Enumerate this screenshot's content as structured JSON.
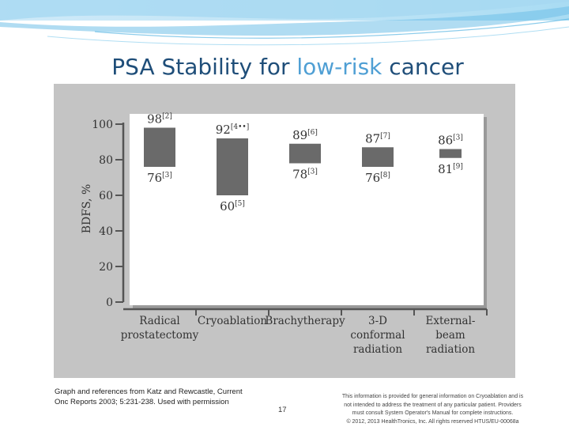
{
  "slide": {
    "title_part1": "PSA Stability for ",
    "title_highlight": "low-risk",
    "title_part2": " cancer",
    "page_number": "17",
    "caption_line1": "Graph and references from Katz and Rewcastle, Current",
    "caption_line2": "Onc Reports 2003; 5:231-238. Used with permission",
    "disclaimer_line1": "This information is provided for general information on Cryoablation and is",
    "disclaimer_line2": "not intended to address the treatment of any particular patient. Providers",
    "disclaimer_line3": "must consult System Operator's Manual for complete instructions.",
    "disclaimer_line4": "© 2012, 2013 HealthTronics, Inc. All rights reserved HTUS/EU-00068a"
  },
  "colors": {
    "title": "#1f4e79",
    "title_highlight": "#4f9fd4",
    "chart_panel": "#c4c4c4",
    "plot_area": "#ffffff",
    "bar": "#6a6a6a",
    "axis": "#555555",
    "text": "#333333"
  },
  "chart_data": {
    "type": "bar",
    "subtype": "floating-range",
    "title": "",
    "xlabel": "",
    "ylabel": "BDFS, %",
    "ylim": [
      0,
      100
    ],
    "yticks": [
      "0",
      "20",
      "40",
      "60",
      "80",
      "100"
    ],
    "grid": false,
    "categories": [
      {
        "lines": [
          "Radical",
          "prostatectomy"
        ]
      },
      {
        "lines": [
          "Cryoablation"
        ]
      },
      {
        "lines": [
          "Brachytherapy"
        ]
      },
      {
        "lines": [
          "3-D",
          "conformal",
          "radiation"
        ]
      },
      {
        "lines": [
          "External-",
          "beam",
          "radiation"
        ]
      }
    ],
    "series": [
      {
        "high": [
          98,
          92,
          89,
          87,
          86
        ],
        "low": [
          76,
          60,
          78,
          76,
          81
        ],
        "high_labels": [
          "98",
          "92",
          "89",
          "87",
          "86"
        ],
        "high_refs": [
          "[2]",
          "[4••]",
          "[6]",
          "[7]",
          "[3]"
        ],
        "low_labels": [
          "76",
          "60",
          "78",
          "76",
          "81"
        ],
        "low_refs": [
          "[3]",
          "[5]",
          "[3]",
          "[8]",
          "[9]"
        ]
      }
    ]
  }
}
